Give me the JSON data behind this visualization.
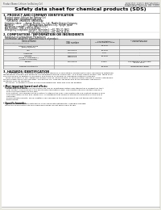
{
  "bg_color": "#ffffff",
  "page_bg": "#e8e8e0",
  "header_left": "Product Name: Lithium Ion Battery Cell",
  "header_right_line1": "BUS/2022 123521 BRFCA9 00012",
  "header_right_line2": "Established / Revision: Dec.7,2010",
  "title": "Safety data sheet for chemical products (SDS)",
  "section1_title": "1. PRODUCT AND COMPANY IDENTIFICATION",
  "section1_items": [
    "  Product name: Lithium Ion Battery Cell",
    "  Product code: Cylindrical-type cell",
    "     (UR18650J, UR18650E, UR18650A)",
    "  Company name:     Sanyo Electric Co., Ltd., Mobile Energy Company",
    "  Address:             2001, Kamiyashiro, Sumoto-City, Hyogo, Japan",
    "  Telephone number:   +81-(799)-20-4111",
    "  Fax number:  +81-1799-26-4125",
    "  Emergency telephone number (Weekday): +81-799-20-3662",
    "                                    (Night and holiday): +81-799-26-4131"
  ],
  "section2_title": "2. COMPOSITION / INFORMATION ON INGREDIENTS",
  "section2_sub": "  Substance or preparation: Preparation",
  "section2_sub2": "  Information about the chemical nature of product:",
  "table_headers": [
    "Component/chemical name",
    "CAS number",
    "Concentration /\nConcentration range",
    "Classification and\nhazard labeling"
  ],
  "table_col_header": "General Name",
  "table_rows": [
    [
      "Lithium cobalt oxide\n(LiMn/Co/NiO2)",
      "-",
      "30-60%",
      ""
    ],
    [
      "Iron",
      "7439-89-6",
      "10-35%",
      "-"
    ],
    [
      "Aluminum",
      "7429-90-5",
      "2-5%",
      "-"
    ],
    [
      "Graphite\n(Flake or graphite-1)\n(Artificial graphite)",
      "7782-42-5\n7782-44-2",
      "10-25%",
      "-"
    ],
    [
      "Copper",
      "7440-50-8",
      "5-15%",
      "Sensitization of the skin\ngroup No.2"
    ],
    [
      "Organic electrolyte",
      "-",
      "10-20%",
      "Inflammable liquid"
    ]
  ],
  "section3_title": "3. HAZARDS IDENTIFICATION",
  "section3_lines": [
    "    For the battery cell, chemical substances are stored in a hermetically sealed metal case, designed to withstand",
    "temperature changes and pressure-concentrations during normal use. As a result, during normal use, there is no",
    "physical danger of ignition or explosion and there is no danger of hazardous materials leakage.",
    "    When exposed to a fire, added mechanical shocks, decomposed, or when electric current is forcibly introduced,",
    "the gas inside cannot be operated. The battery cell case will be breached at the extreme, hazardous",
    "materials may be released.",
    "    Moreover, if heated strongly by the surrounding fire, toxic gas may be emitted."
  ],
  "bullet1": "  Most important hazard and effects:",
  "human_health": "    Human health effects:",
  "inhalation_lines": [
    "        Inhalation: The release of the electrolyte has an anesthesia action and stimulates a respiratory tract.",
    "        Skin contact: The release of the electrolyte stimulates a skin. The electrolyte skin contact causes a",
    "        sore and stimulation on the skin.",
    "        Eye contact: The release of the electrolyte stimulates eyes. The electrolyte eye contact causes a sore",
    "        and stimulation on the eye. Especially, a substance that causes a strong inflammation of the eye is",
    "        contained.",
    "        Environmental effects: Since a battery cell remains in the environment, do not throw out it into the",
    "        environment."
  ],
  "bullet2": "  Specific hazards:",
  "specific_lines": [
    "    If the electrolyte contacts with water, it will generate detrimental hydrogen fluoride.",
    "    Since the used electrolyte is inflammable liquid, do not bring close to fire."
  ]
}
